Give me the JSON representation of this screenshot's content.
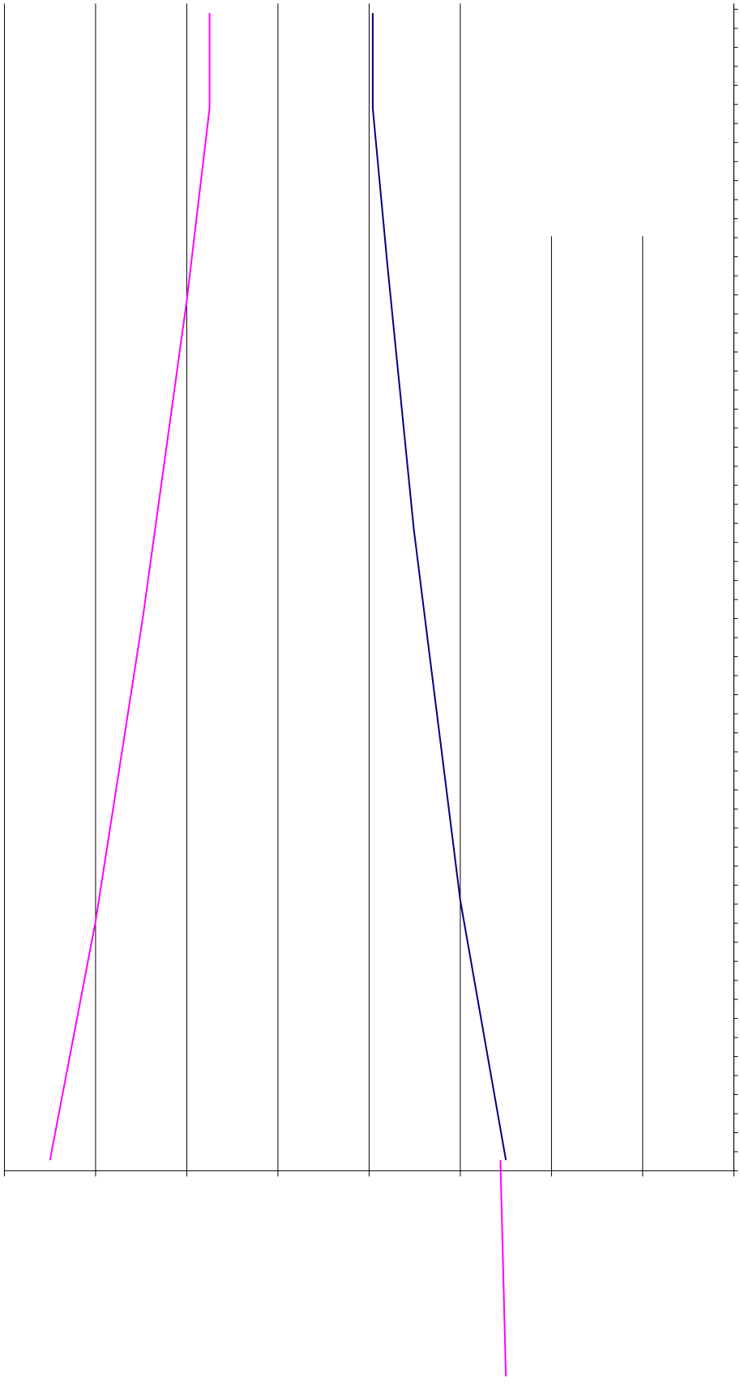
{
  "chart_data": {
    "type": "line",
    "series": [
      {
        "color": "#ff00ff",
        "x": [
          2.25,
          2.25,
          2.0,
          1.52,
          1.0,
          0.5
        ],
        "values": [
          60.8,
          55.8,
          45.7,
          29.1,
          13.1,
          0.56
        ]
      },
      {
        "color": "#000080",
        "x": [
          4.04,
          4.04,
          4.2,
          4.49,
          5.0,
          5.5
        ],
        "values": [
          60.8,
          55.8,
          47.6,
          33.7,
          14.2,
          0.56
        ]
      },
      {
        "color": "#ff00ff",
        "x": [
          5.44,
          5.5
        ],
        "values": [
          0.56,
          -10.8
        ]
      }
    ],
    "xlim": [
      0,
      8
    ],
    "xticks": [
      0,
      1,
      2,
      3,
      4,
      5,
      6,
      7,
      8
    ],
    "ylim": [
      0,
      61.3
    ],
    "yticks": [
      0,
      1,
      2,
      3,
      4,
      5,
      6,
      7,
      8,
      9,
      10,
      11,
      12,
      13,
      14,
      15,
      16,
      17,
      18,
      19,
      20,
      21,
      22,
      23,
      24,
      25,
      26,
      27,
      28,
      29,
      30,
      31,
      32,
      33,
      34,
      35,
      36,
      37,
      38,
      39,
      40,
      41,
      42,
      43,
      44,
      45,
      46,
      47,
      48,
      49,
      50,
      51,
      52,
      53,
      54,
      55,
      56,
      57,
      58,
      59,
      60,
      61
    ],
    "grid": true
  }
}
